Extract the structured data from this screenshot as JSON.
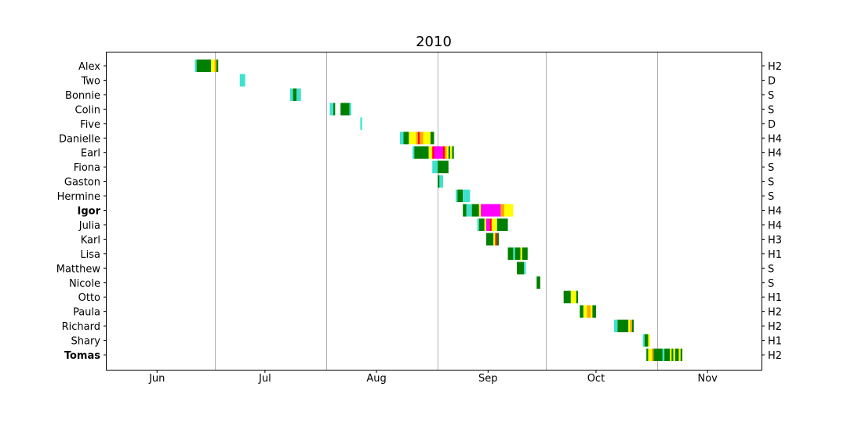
{
  "chart_data": {
    "type": "timeline",
    "title": "2010",
    "x_ticks": [
      {
        "label": "Jun",
        "date": "2010-06-15"
      },
      {
        "label": "Jul",
        "date": "2010-07-15"
      },
      {
        "label": "Aug",
        "date": "2010-08-15"
      },
      {
        "label": "Sep",
        "date": "2010-09-15"
      },
      {
        "label": "Oct",
        "date": "2010-10-15"
      },
      {
        "label": "Nov",
        "date": "2010-11-15"
      }
    ],
    "month_gridlines": [
      "2010-07-01",
      "2010-08-01",
      "2010-09-01",
      "2010-10-01",
      "2010-11-01"
    ],
    "xlim": [
      "2010-06-01",
      "2010-11-30"
    ],
    "colors": {
      "TD": "#40e0d0",
      "TS": "#008000",
      "H1": "#ffff00",
      "H2": "#ffa500",
      "H3": "#ff0000",
      "H4": "#ff00ff"
    },
    "storms": [
      {
        "name": "Alex",
        "category": "H2",
        "bold": false,
        "segments": [
          {
            "start": "2010-06-25.5",
            "end": "2010-06-26.0",
            "stage": "TD"
          },
          {
            "start": "2010-06-26.0",
            "end": "2010-06-30.0",
            "stage": "TS"
          },
          {
            "start": "2010-06-30.0",
            "end": "2010-07-01.0",
            "stage": "H1"
          },
          {
            "start": "2010-07-01.0",
            "end": "2010-07-01.5",
            "stage": "H2"
          },
          {
            "start": "2010-07-01.5",
            "end": "2010-07-02.0",
            "stage": "TS"
          }
        ]
      },
      {
        "name": "Two",
        "category": "D",
        "bold": false,
        "segments": [
          {
            "start": "2010-07-08.0",
            "end": "2010-07-09.5",
            "stage": "TD"
          }
        ]
      },
      {
        "name": "Bonnie",
        "category": "S",
        "bold": false,
        "segments": [
          {
            "start": "2010-07-22.0",
            "end": "2010-07-22.8",
            "stage": "TD"
          },
          {
            "start": "2010-07-22.8",
            "end": "2010-07-23.8",
            "stage": "TS"
          },
          {
            "start": "2010-07-23.8",
            "end": "2010-07-25.0",
            "stage": "TD"
          }
        ]
      },
      {
        "name": "Colin",
        "category": "S",
        "bold": false,
        "segments": [
          {
            "start": "2010-08-02.0",
            "end": "2010-08-03.0",
            "stage": "TD"
          },
          {
            "start": "2010-08-03.0",
            "end": "2010-08-03.5",
            "stage": "TS"
          },
          {
            "start": "2010-08-05.0",
            "end": "2010-08-07.5",
            "stage": "TS"
          },
          {
            "start": "2010-08-07.5",
            "end": "2010-08-08.0",
            "stage": "TD"
          }
        ]
      },
      {
        "name": "Five",
        "category": "D",
        "bold": false,
        "segments": [
          {
            "start": "2010-08-10.5",
            "end": "2010-08-11.0",
            "stage": "TD"
          }
        ]
      },
      {
        "name": "Danielle",
        "category": "H4",
        "bold": false,
        "segments": [
          {
            "start": "2010-08-21.5",
            "end": "2010-08-22.5",
            "stage": "TD"
          },
          {
            "start": "2010-08-22.5",
            "end": "2010-08-24.0",
            "stage": "TS"
          },
          {
            "start": "2010-08-24.0",
            "end": "2010-08-26.0",
            "stage": "H1"
          },
          {
            "start": "2010-08-26.0",
            "end": "2010-08-26.5",
            "stage": "H2"
          },
          {
            "start": "2010-08-26.5",
            "end": "2010-08-27.0",
            "stage": "H3"
          },
          {
            "start": "2010-08-27.0",
            "end": "2010-08-28.0",
            "stage": "H2"
          },
          {
            "start": "2010-08-28.0",
            "end": "2010-08-30.0",
            "stage": "H1"
          },
          {
            "start": "2010-08-30.0",
            "end": "2010-08-31.0",
            "stage": "TS"
          }
        ]
      },
      {
        "name": "Earl",
        "category": "H4",
        "bold": false,
        "segments": [
          {
            "start": "2010-08-25.0",
            "end": "2010-08-25.5",
            "stage": "TD"
          },
          {
            "start": "2010-08-25.5",
            "end": "2010-08-29.5",
            "stage": "TS"
          },
          {
            "start": "2010-08-29.5",
            "end": "2010-08-30.5",
            "stage": "H1"
          },
          {
            "start": "2010-08-30.5",
            "end": "2010-08-31.0",
            "stage": "H3"
          },
          {
            "start": "2010-08-31.0",
            "end": "2010-09-02.5",
            "stage": "H4"
          },
          {
            "start": "2010-09-02.5",
            "end": "2010-09-03.0",
            "stage": "H3"
          },
          {
            "start": "2010-09-03.0",
            "end": "2010-09-03.5",
            "stage": "H2"
          },
          {
            "start": "2010-09-03.5",
            "end": "2010-09-04.0",
            "stage": "H1"
          },
          {
            "start": "2010-09-04.0",
            "end": "2010-09-04.5",
            "stage": "TS"
          },
          {
            "start": "2010-09-04.5",
            "end": "2010-09-05.0",
            "stage": "H1"
          },
          {
            "start": "2010-09-05.0",
            "end": "2010-09-05.5",
            "stage": "TS"
          }
        ]
      },
      {
        "name": "Fiona",
        "category": "S",
        "bold": false,
        "segments": [
          {
            "start": "2010-08-30.5",
            "end": "2010-09-01.0",
            "stage": "TD"
          },
          {
            "start": "2010-09-01.0",
            "end": "2010-09-04.0",
            "stage": "TS"
          }
        ]
      },
      {
        "name": "Gaston",
        "category": "S",
        "bold": false,
        "segments": [
          {
            "start": "2010-09-01.0",
            "end": "2010-09-01.5",
            "stage": "TS"
          },
          {
            "start": "2010-09-01.5",
            "end": "2010-09-02.5",
            "stage": "TD"
          }
        ]
      },
      {
        "name": "Hermine",
        "category": "S",
        "bold": false,
        "segments": [
          {
            "start": "2010-09-06.0",
            "end": "2010-09-06.5",
            "stage": "TD"
          },
          {
            "start": "2010-09-06.5",
            "end": "2010-09-08.0",
            "stage": "TS"
          },
          {
            "start": "2010-09-08.0",
            "end": "2010-09-10.0",
            "stage": "TD"
          }
        ]
      },
      {
        "name": "Igor",
        "category": "H4",
        "bold": true,
        "segments": [
          {
            "start": "2010-09-08.0",
            "end": "2010-09-09.0",
            "stage": "TS"
          },
          {
            "start": "2010-09-09.0",
            "end": "2010-09-10.5",
            "stage": "TD"
          },
          {
            "start": "2010-09-10.5",
            "end": "2010-09-12.5",
            "stage": "TS"
          },
          {
            "start": "2010-09-12.5",
            "end": "2010-09-13.0",
            "stage": "H1"
          },
          {
            "start": "2010-09-13.0",
            "end": "2010-09-18.5",
            "stage": "H4"
          },
          {
            "start": "2010-09-18.5",
            "end": "2010-09-19.5",
            "stage": "H2"
          },
          {
            "start": "2010-09-19.5",
            "end": "2010-09-22.0",
            "stage": "H1"
          }
        ]
      },
      {
        "name": "Julia",
        "category": "H4",
        "bold": false,
        "segments": [
          {
            "start": "2010-09-12.0",
            "end": "2010-09-12.5",
            "stage": "TD"
          },
          {
            "start": "2010-09-12.5",
            "end": "2010-09-14.0",
            "stage": "TS"
          },
          {
            "start": "2010-09-14.0",
            "end": "2010-09-14.5",
            "stage": "H1"
          },
          {
            "start": "2010-09-14.5",
            "end": "2010-09-15.5",
            "stage": "H4"
          },
          {
            "start": "2010-09-15.5",
            "end": "2010-09-16.0",
            "stage": "H3"
          },
          {
            "start": "2010-09-16.0",
            "end": "2010-09-17.5",
            "stage": "H1"
          },
          {
            "start": "2010-09-17.5",
            "end": "2010-09-20.5",
            "stage": "TS"
          }
        ]
      },
      {
        "name": "Karl",
        "category": "H3",
        "bold": false,
        "segments": [
          {
            "start": "2010-09-14.5",
            "end": "2010-09-16.5",
            "stage": "TS"
          },
          {
            "start": "2010-09-16.5",
            "end": "2010-09-17.0",
            "stage": "H1"
          },
          {
            "start": "2010-09-17.0",
            "end": "2010-09-17.5",
            "stage": "H3"
          },
          {
            "start": "2010-09-17.5",
            "end": "2010-09-18.0",
            "stage": "TS"
          }
        ]
      },
      {
        "name": "Lisa",
        "category": "H1",
        "bold": false,
        "segments": [
          {
            "start": "2010-09-20.5",
            "end": "2010-09-22.0",
            "stage": "TS"
          },
          {
            "start": "2010-09-22.0",
            "end": "2010-09-22.5",
            "stage": "TD"
          },
          {
            "start": "2010-09-22.5",
            "end": "2010-09-24.0",
            "stage": "TS"
          },
          {
            "start": "2010-09-24.0",
            "end": "2010-09-24.5",
            "stage": "H1"
          },
          {
            "start": "2010-09-24.5",
            "end": "2010-09-26.0",
            "stage": "TS"
          }
        ]
      },
      {
        "name": "Matthew",
        "category": "S",
        "bold": false,
        "segments": [
          {
            "start": "2010-09-23.0",
            "end": "2010-09-25.0",
            "stage": "TS"
          },
          {
            "start": "2010-09-25.0",
            "end": "2010-09-25.5",
            "stage": "TD"
          }
        ]
      },
      {
        "name": "Nicole",
        "category": "S",
        "bold": false,
        "segments": [
          {
            "start": "2010-09-28.5",
            "end": "2010-09-29.5",
            "stage": "TS"
          }
        ]
      },
      {
        "name": "Otto",
        "category": "H1",
        "bold": false,
        "segments": [
          {
            "start": "2010-10-06.0",
            "end": "2010-10-08.0",
            "stage": "TS"
          },
          {
            "start": "2010-10-08.0",
            "end": "2010-10-09.5",
            "stage": "H1"
          },
          {
            "start": "2010-10-09.5",
            "end": "2010-10-10.0",
            "stage": "TS"
          }
        ]
      },
      {
        "name": "Paula",
        "category": "H2",
        "bold": false,
        "segments": [
          {
            "start": "2010-10-10.5",
            "end": "2010-10-11.5",
            "stage": "TS"
          },
          {
            "start": "2010-10-11.5",
            "end": "2010-10-12.5",
            "stage": "H1"
          },
          {
            "start": "2010-10-12.5",
            "end": "2010-10-13.5",
            "stage": "H2"
          },
          {
            "start": "2010-10-13.5",
            "end": "2010-10-14.0",
            "stage": "H1"
          },
          {
            "start": "2010-10-14.0",
            "end": "2010-10-15.0",
            "stage": "TS"
          }
        ]
      },
      {
        "name": "Richard",
        "category": "H2",
        "bold": false,
        "segments": [
          {
            "start": "2010-10-20.0",
            "end": "2010-10-21.0",
            "stage": "TD"
          },
          {
            "start": "2010-10-21.0",
            "end": "2010-10-24.0",
            "stage": "TS"
          },
          {
            "start": "2010-10-24.0",
            "end": "2010-10-24.5",
            "stage": "H1"
          },
          {
            "start": "2010-10-24.5",
            "end": "2010-10-25.0",
            "stage": "H2"
          },
          {
            "start": "2010-10-25.0",
            "end": "2010-10-25.5",
            "stage": "TS"
          }
        ]
      },
      {
        "name": "Shary",
        "category": "H1",
        "bold": false,
        "segments": [
          {
            "start": "2010-10-28.0",
            "end": "2010-10-28.5",
            "stage": "TD"
          },
          {
            "start": "2010-10-28.5",
            "end": "2010-10-29.5",
            "stage": "TS"
          },
          {
            "start": "2010-10-29.5",
            "end": "2010-10-30.0",
            "stage": "H1"
          }
        ]
      },
      {
        "name": "Tomas",
        "category": "H2",
        "bold": true,
        "segments": [
          {
            "start": "2010-10-29.0",
            "end": "2010-10-29.5",
            "stage": "TS"
          },
          {
            "start": "2010-10-29.5",
            "end": "2010-10-30.5",
            "stage": "H1"
          },
          {
            "start": "2010-10-30.5",
            "end": "2010-10-31.0",
            "stage": "H2"
          },
          {
            "start": "2010-10-31.0",
            "end": "2010-11-02.5",
            "stage": "TS"
          },
          {
            "start": "2010-11-02.5",
            "end": "2010-11-03.0",
            "stage": "TD"
          },
          {
            "start": "2010-11-03.0",
            "end": "2010-11-04.5",
            "stage": "TS"
          },
          {
            "start": "2010-11-04.5",
            "end": "2010-11-05.0",
            "stage": "H1"
          },
          {
            "start": "2010-11-05.0",
            "end": "2010-11-05.5",
            "stage": "TS"
          },
          {
            "start": "2010-11-05.5",
            "end": "2010-11-06.0",
            "stage": "H1"
          },
          {
            "start": "2010-11-06.0",
            "end": "2010-11-07.0",
            "stage": "TS"
          },
          {
            "start": "2010-11-07.0",
            "end": "2010-11-07.5",
            "stage": "H1"
          },
          {
            "start": "2010-11-07.5",
            "end": "2010-11-08.0",
            "stage": "TS"
          }
        ]
      }
    ]
  }
}
